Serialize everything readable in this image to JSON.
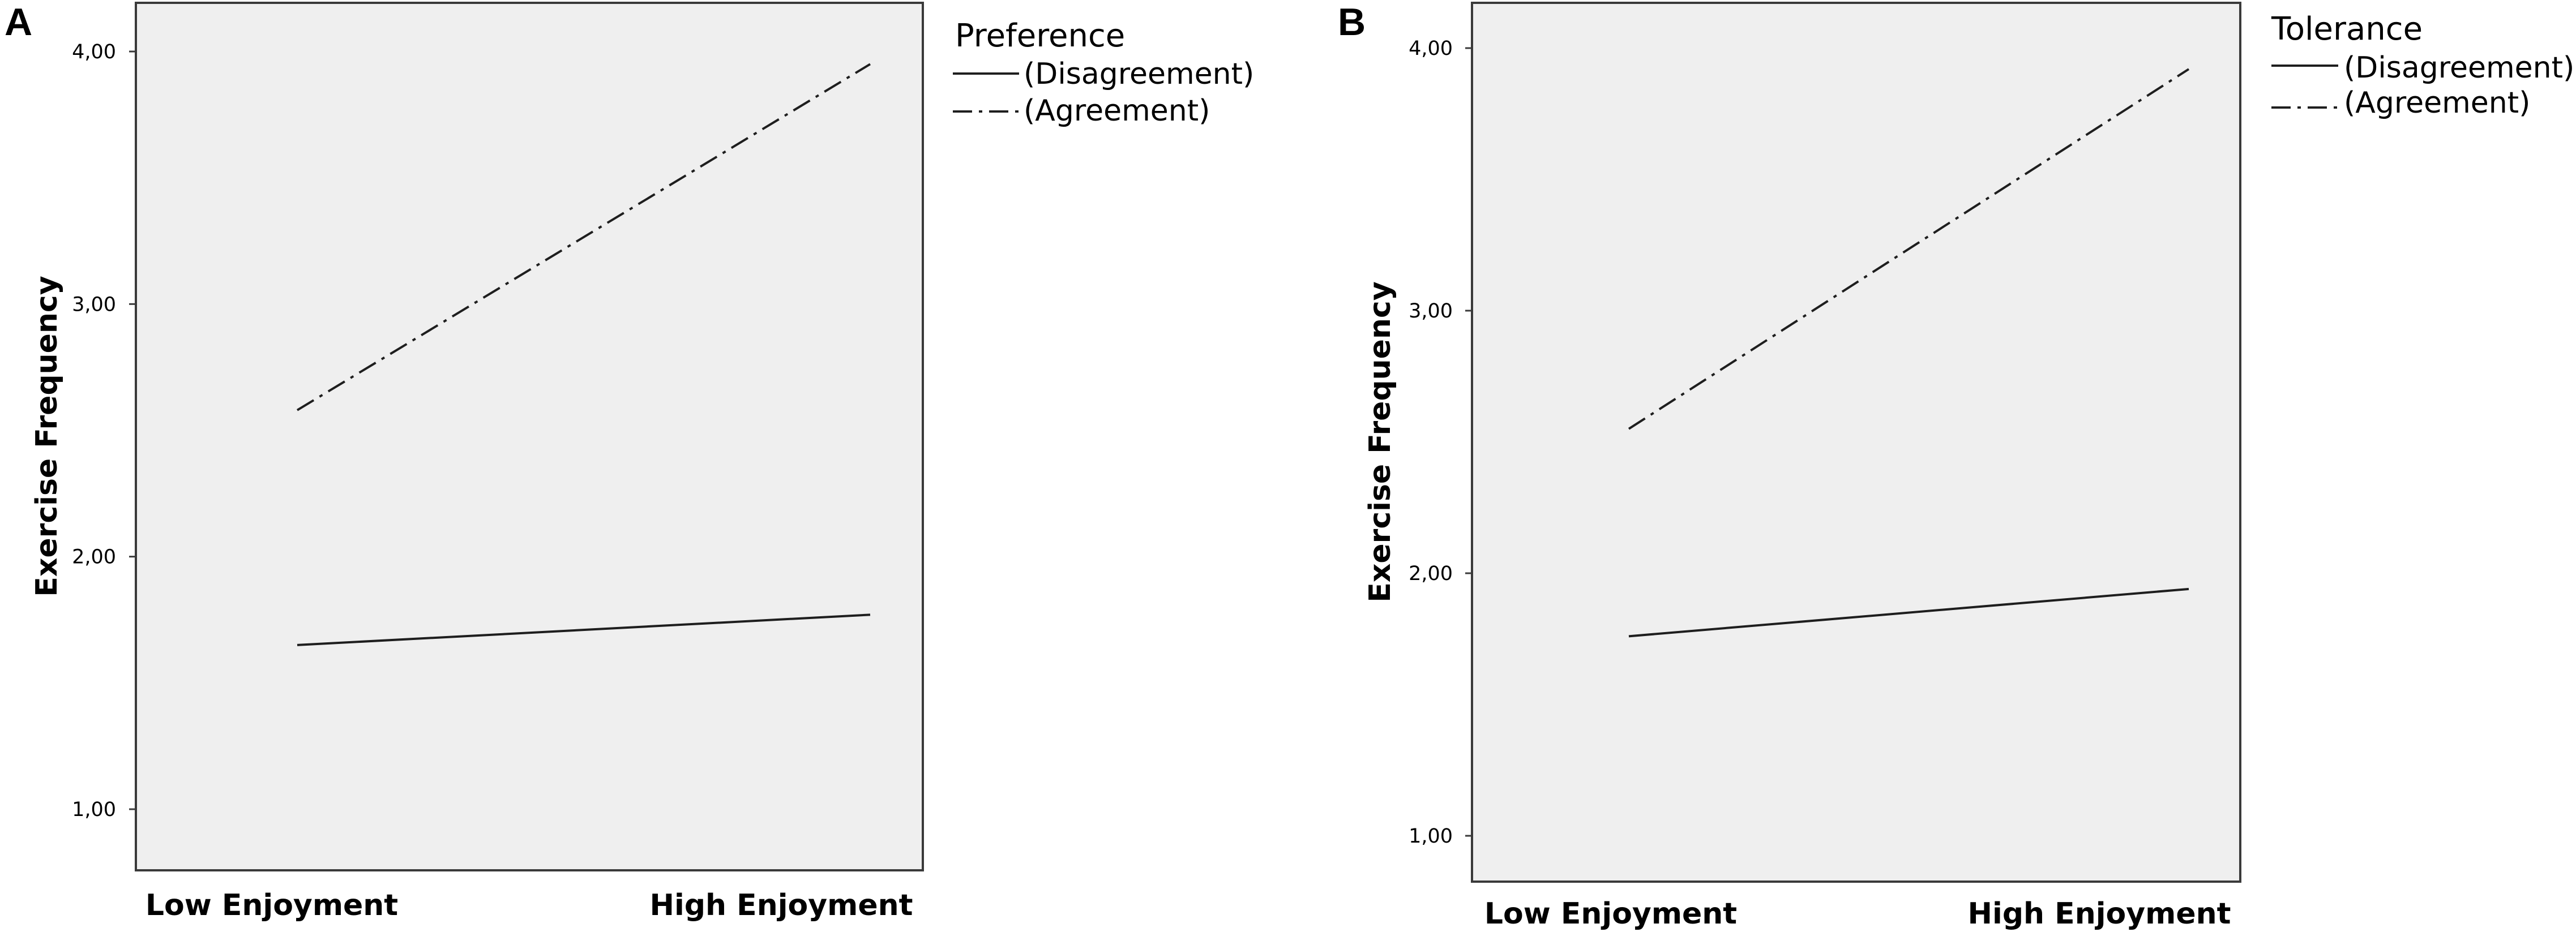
{
  "chart_data": [
    {
      "type": "line",
      "panel": "A",
      "xlabel": "",
      "ylabel": "Exercise Frequency",
      "categories": [
        "Low Enjoyment",
        "High Enjoyment"
      ],
      "yticks": [
        "1,00",
        "2,00",
        "3,00",
        "4,00"
      ],
      "ylim": [
        0.83,
        4.17
      ],
      "legend": {
        "title": "Preference",
        "placement": "right, outside plot"
      },
      "grid": false,
      "series": [
        {
          "name": "(Disagreement)",
          "style": "solid",
          "values": [
            1.65,
            1.77
          ]
        },
        {
          "name": "(Agreement)",
          "style": "dash-dot",
          "values": [
            2.58,
            3.95
          ]
        }
      ]
    },
    {
      "type": "line",
      "panel": "B",
      "xlabel": "",
      "ylabel": "Exercise Frequency",
      "categories": [
        "Low Enjoyment",
        "High Enjoyment"
      ],
      "yticks": [
        "1,00",
        "2,00",
        "3,00",
        "4,00"
      ],
      "ylim": [
        0.83,
        4.17
      ],
      "legend": {
        "title": "Tolerance",
        "placement": "right, outside plot"
      },
      "grid": false,
      "series": [
        {
          "name": "(Disagreement)",
          "style": "solid",
          "values": [
            1.76,
            1.94
          ]
        },
        {
          "name": "(Agreement)",
          "style": "dash-dot",
          "values": [
            2.55,
            3.92
          ]
        }
      ]
    }
  ]
}
